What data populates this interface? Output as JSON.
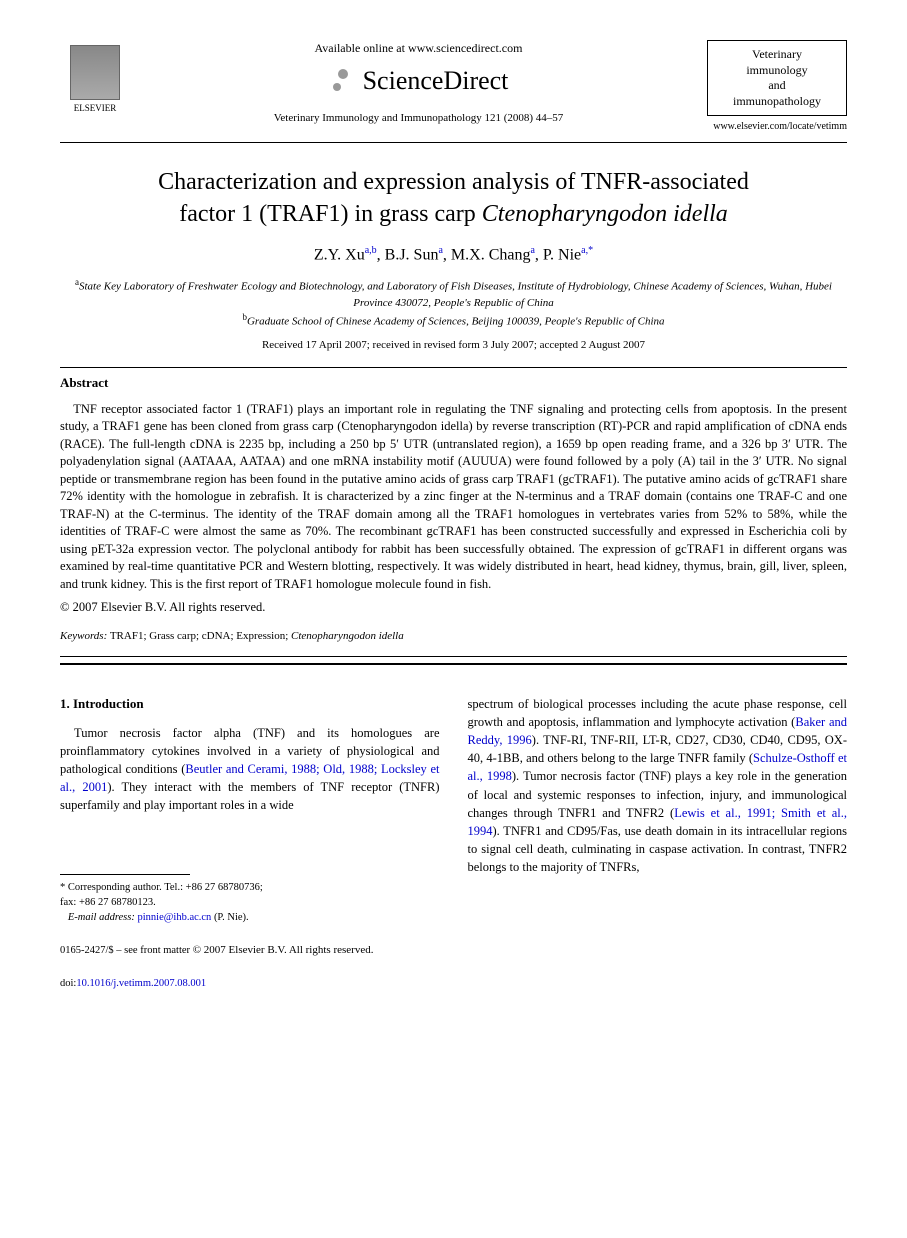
{
  "header": {
    "available_online": "Available online at www.sciencedirect.com",
    "sciencedirect": "ScienceDirect",
    "journal_ref": "Veterinary Immunology and Immunopathology 121 (2008) 44–57",
    "publisher": "ELSEVIER",
    "journal_box_line1": "Veterinary",
    "journal_box_line2": "immunology",
    "journal_box_line3": "and",
    "journal_box_line4": "immunopathology",
    "journal_url": "www.elsevier.com/locate/vetimm"
  },
  "article": {
    "title_line1": "Characterization and expression analysis of TNFR-associated",
    "title_line2_part1": "factor 1 (TRAF1) in grass carp ",
    "title_line2_italic": "Ctenopharyngodon idella",
    "authors_html": "Z.Y. Xu",
    "author1": "Z.Y. Xu",
    "author1_sup": "a,b",
    "author2": "B.J. Sun",
    "author2_sup": "a",
    "author3": "M.X. Chang",
    "author3_sup": "a",
    "author4": "P. Nie",
    "author4_sup": "a,",
    "author4_corr": "*",
    "affil_a_sup": "a",
    "affil_a": "State Key Laboratory of Freshwater Ecology and Biotechnology, and Laboratory of Fish Diseases, Institute of Hydrobiology, Chinese Academy of Sciences, Wuhan, Hubei Province 430072, People's Republic of China",
    "affil_b_sup": "b",
    "affil_b": "Graduate School of Chinese Academy of Sciences, Beijing 100039, People's Republic of China",
    "dates": "Received 17 April 2007; received in revised form 3 July 2007; accepted 2 August 2007"
  },
  "abstract": {
    "heading": "Abstract",
    "text": "TNF receptor associated factor 1 (TRAF1) plays an important role in regulating the TNF signaling and protecting cells from apoptosis. In the present study, a TRAF1 gene has been cloned from grass carp (Ctenopharyngodon idella) by reverse transcription (RT)-PCR and rapid amplification of cDNA ends (RACE). The full-length cDNA is 2235 bp, including a 250 bp 5′ UTR (untranslated region), a 1659 bp open reading frame, and a 326 bp 3′ UTR. The polyadenylation signal (AATAAA, AATAA) and one mRNA instability motif (AUUUA) were found followed by a poly (A) tail in the 3′ UTR. No signal peptide or transmembrane region has been found in the putative amino acids of grass carp TRAF1 (gcTRAF1). The putative amino acids of gcTRAF1 share 72% identity with the homologue in zebrafish. It is characterized by a zinc finger at the N-terminus and a TRAF domain (contains one TRAF-C and one TRAF-N) at the C-terminus. The identity of the TRAF domain among all the TRAF1 homologues in vertebrates varies from 52% to 58%, while the identities of TRAF-C were almost the same as 70%. The recombinant gcTRAF1 has been constructed successfully and expressed in Escherichia coli by using pET-32a expression vector. The polyclonal antibody for rabbit has been successfully obtained. The expression of gcTRAF1 in different organs was examined by real-time quantitative PCR and Western blotting, respectively. It was widely distributed in heart, head kidney, thymus, brain, gill, liver, spleen, and trunk kidney. This is the first report of TRAF1 homologue molecule found in fish.",
    "copyright": "© 2007 Elsevier B.V. All rights reserved."
  },
  "keywords": {
    "label": "Keywords:",
    "text": "TRAF1; Grass carp; cDNA; Expression; ",
    "italic": "Ctenopharyngodon idella"
  },
  "intro": {
    "heading": "1. Introduction",
    "col1_p1_a": "Tumor necrosis factor alpha (TNF) and its homologues are proinflammatory cytokines involved in a variety of physiological and pathological conditions (",
    "col1_ref1": "Beutler and Cerami, 1988; Old, 1988; Locksley et al., 2001",
    "col1_p1_b": "). They interact with the members of TNF receptor (TNFR) superfamily and play important roles in a wide",
    "col2_p1_a": "spectrum of biological processes including the acute phase response, cell growth and apoptosis, inflammation and lymphocyte activation (",
    "col2_ref1": "Baker and Reddy, 1996",
    "col2_p1_b": "). TNF-RI, TNF-RII, LT-R, CD27, CD30, CD40, CD95, OX-40, 4-1BB, and others belong to the large TNFR family (",
    "col2_ref2": "Schulze-Osthoff et al., 1998",
    "col2_p1_c": "). Tumor necrosis factor (TNF) plays a key role in the generation of local and systemic responses to infection, injury, and immunological changes through TNFR1 and TNFR2 (",
    "col2_ref3": "Lewis et al., 1991; Smith et al., 1994",
    "col2_p1_d": "). TNFR1 and CD95/Fas, use death domain in its intracellular regions to signal cell death, culminating in caspase activation. In contrast, TNFR2 belongs to the majority of TNFRs,"
  },
  "footnote": {
    "corr": "* Corresponding author. Tel.: +86 27 68780736;",
    "fax": "fax: +86 27 68780123.",
    "email_label": "E-mail address:",
    "email": "pinnie@ihb.ac.cn",
    "email_suffix": " (P. Nie)."
  },
  "footer": {
    "issn": "0165-2427/$ – see front matter ",
    "copyright": "© 2007 Elsevier B.V. All rights reserved.",
    "doi_label": "doi:",
    "doi": "10.1016/j.vetimm.2007.08.001"
  },
  "styles": {
    "link_color": "#0000cc",
    "text_color": "#000000",
    "background": "#ffffff",
    "body_font": "Times New Roman",
    "title_fontsize": 24,
    "body_fontsize": 13,
    "abstract_fontsize": 12.5,
    "footnote_fontsize": 10.5
  }
}
